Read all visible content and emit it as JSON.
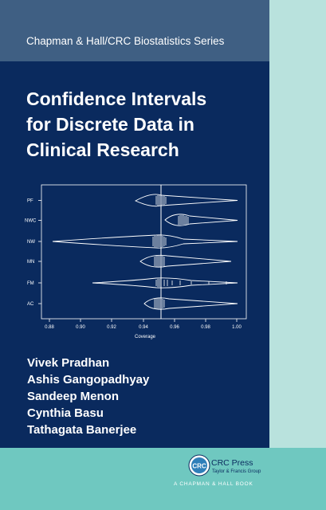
{
  "series": "Chapman & Hall/CRC Biostatistics Series",
  "title_lines": [
    "Confidence Intervals",
    "for Discrete Data in",
    "Clinical Research"
  ],
  "plot": {
    "categories": [
      "PF",
      "NWC",
      "NW",
      "MN",
      "FM",
      "AC"
    ],
    "x_ticks": [
      "0.88",
      "0.90",
      "0.92",
      "0.94",
      "0.96",
      "0.98",
      "1.00"
    ],
    "x_label": "Coverage"
  },
  "authors": [
    "Vivek Pradhan",
    "Ashis Gangopadhyay",
    "Sandeep Menon",
    "Cynthia Basu",
    "Tathagata Banerjee"
  ],
  "publisher": {
    "logo_text": "CRC",
    "name": "CRC Press",
    "sub": "Taylor & Francis Group",
    "imprint": "A CHAPMAN & HALL BOOK"
  },
  "colors": {
    "navy": "#0a2a5e",
    "band": "#3f5f83",
    "teal": "#6fc8c0",
    "mint": "#b9e2dd"
  }
}
